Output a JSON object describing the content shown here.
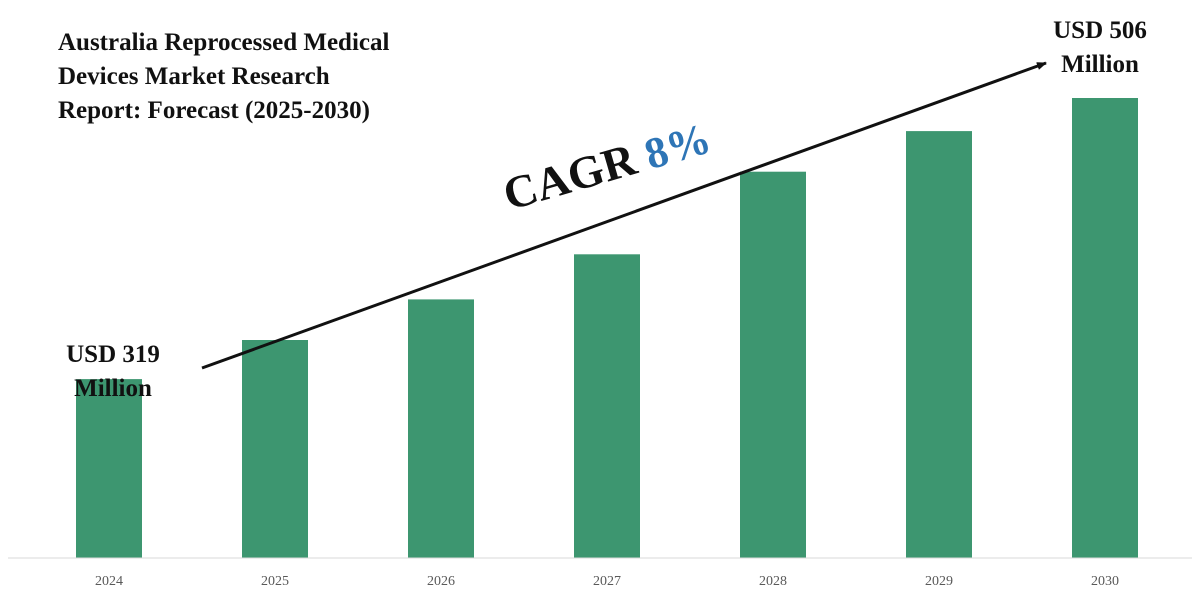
{
  "chart_data": {
    "type": "bar",
    "title_lines": [
      "Australia Reprocessed Medical",
      "Devices Market Research",
      "Report: Forecast (2025-2030)"
    ],
    "categories": [
      "2024",
      "2025",
      "2026",
      "2027",
      "2028",
      "2029",
      "2030"
    ],
    "values": [
      319,
      345,
      372,
      402,
      457,
      484,
      506
    ],
    "ylim": [
      200,
      520
    ],
    "xlabel": "",
    "ylabel": "",
    "grid": false,
    "bar_color": "#3d9670",
    "annotations": {
      "start": {
        "line1": "USD 319",
        "line2": "Million"
      },
      "end": {
        "line1": "USD 506",
        "line2": "Million"
      },
      "cagr_label": "CAGR",
      "cagr_value": "8%",
      "cagr_color": "#2e75b6"
    }
  }
}
